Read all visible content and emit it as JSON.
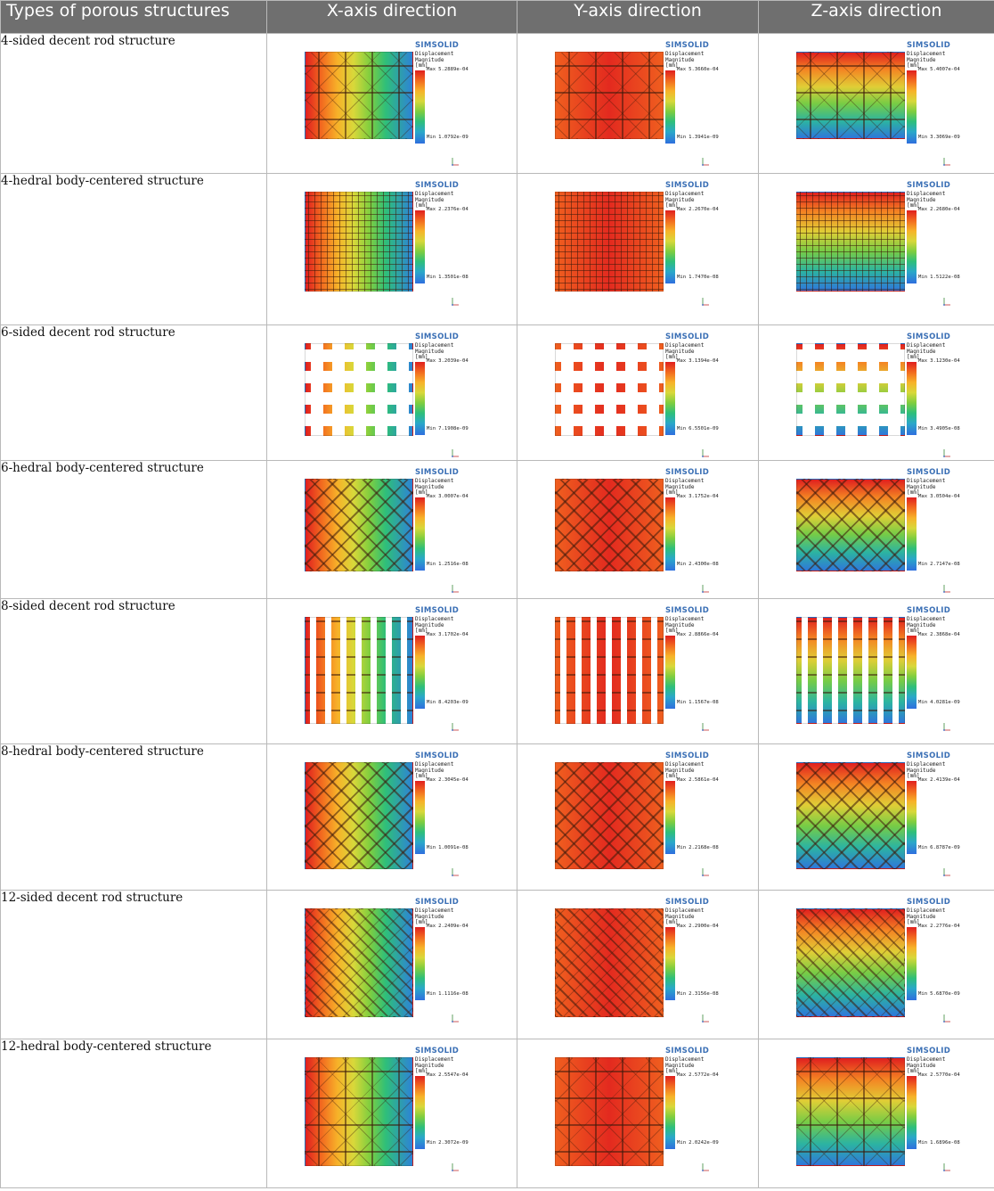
{
  "headers": [
    "Types of porous structures",
    "X-axis direction",
    "Y-axis direction",
    "Z-axis direction"
  ],
  "legend": {
    "brand": "SIMSOLID",
    "title_lines": [
      "Displacement",
      "Magnitude",
      "[mm]"
    ],
    "max_label": "Max",
    "min_label": "Min"
  },
  "rows": [
    {
      "label": "4-sided decent rod structure",
      "pattern": "cross4",
      "cells": [
        {
          "dir": "x",
          "max": "5.2889e-04",
          "min": "1.0792e-09"
        },
        {
          "dir": "y",
          "max": "5.3660e-04",
          "min": "1.3941e-09"
        },
        {
          "dir": "z",
          "max": "5.4007e-04",
          "min": "3.3069e-09"
        }
      ]
    },
    {
      "label": "4-hedral body-centered structure",
      "pattern": "fine",
      "cells": [
        {
          "dir": "x",
          "max": "2.2376e-04",
          "min": "1.3501e-08"
        },
        {
          "dir": "y",
          "max": "2.2670e-04",
          "min": "1.7470e-08"
        },
        {
          "dir": "z",
          "max": "2.2680e-04",
          "min": "1.5122e-08"
        }
      ]
    },
    {
      "label": "6-sided decent rod structure",
      "pattern": "squares",
      "cells": [
        {
          "dir": "x",
          "max": "3.2039e-04",
          "min": "7.1908e-09"
        },
        {
          "dir": "y",
          "max": "3.1394e-04",
          "min": "6.5501e-09"
        },
        {
          "dir": "z",
          "max": "3.1230e-04",
          "min": "3.4905e-08"
        }
      ]
    },
    {
      "label": "6-hedral body-centered structure",
      "pattern": "diamond",
      "cells": [
        {
          "dir": "x",
          "max": "3.0007e-04",
          "min": "1.2516e-08"
        },
        {
          "dir": "y",
          "max": "3.1752e-04",
          "min": "2.4300e-08"
        },
        {
          "dir": "z",
          "max": "3.0504e-04",
          "min": "2.7147e-08"
        }
      ]
    },
    {
      "label": "8-sided decent rod structure",
      "pattern": "columns",
      "cells": [
        {
          "dir": "x",
          "max": "3.1702e-04",
          "min": "8.4203e-09"
        },
        {
          "dir": "y",
          "max": "2.8866e-04",
          "min": "1.1567e-08"
        },
        {
          "dir": "z",
          "max": "2.3868e-04",
          "min": "4.0281e-09"
        }
      ]
    },
    {
      "label": "8-hedral body-centered structure",
      "pattern": "diamond",
      "cells": [
        {
          "dir": "x",
          "max": "2.3045e-04",
          "min": "1.0091e-08"
        },
        {
          "dir": "y",
          "max": "2.5861e-04",
          "min": "2.2168e-08"
        },
        {
          "dir": "z",
          "max": "2.4139e-04",
          "min": "6.8787e-09"
        }
      ]
    },
    {
      "label": "12-sided decent rod structure",
      "pattern": "diagonal",
      "cells": [
        {
          "dir": "x",
          "max": "2.2409e-04",
          "min": "1.1116e-08"
        },
        {
          "dir": "y",
          "max": "2.2900e-04",
          "min": "2.3156e-08"
        },
        {
          "dir": "z",
          "max": "2.2776e-04",
          "min": "5.6870e-09"
        }
      ]
    },
    {
      "label": "12-hedral body-centered structure",
      "pattern": "cross4",
      "cells": [
        {
          "dir": "x",
          "max": "2.5547e-04",
          "min": "2.3072e-09"
        },
        {
          "dir": "y",
          "max": "2.5772e-04",
          "min": "2.0242e-09"
        },
        {
          "dir": "z",
          "max": "2.5770e-04",
          "min": "1.6896e-08"
        }
      ]
    }
  ]
}
